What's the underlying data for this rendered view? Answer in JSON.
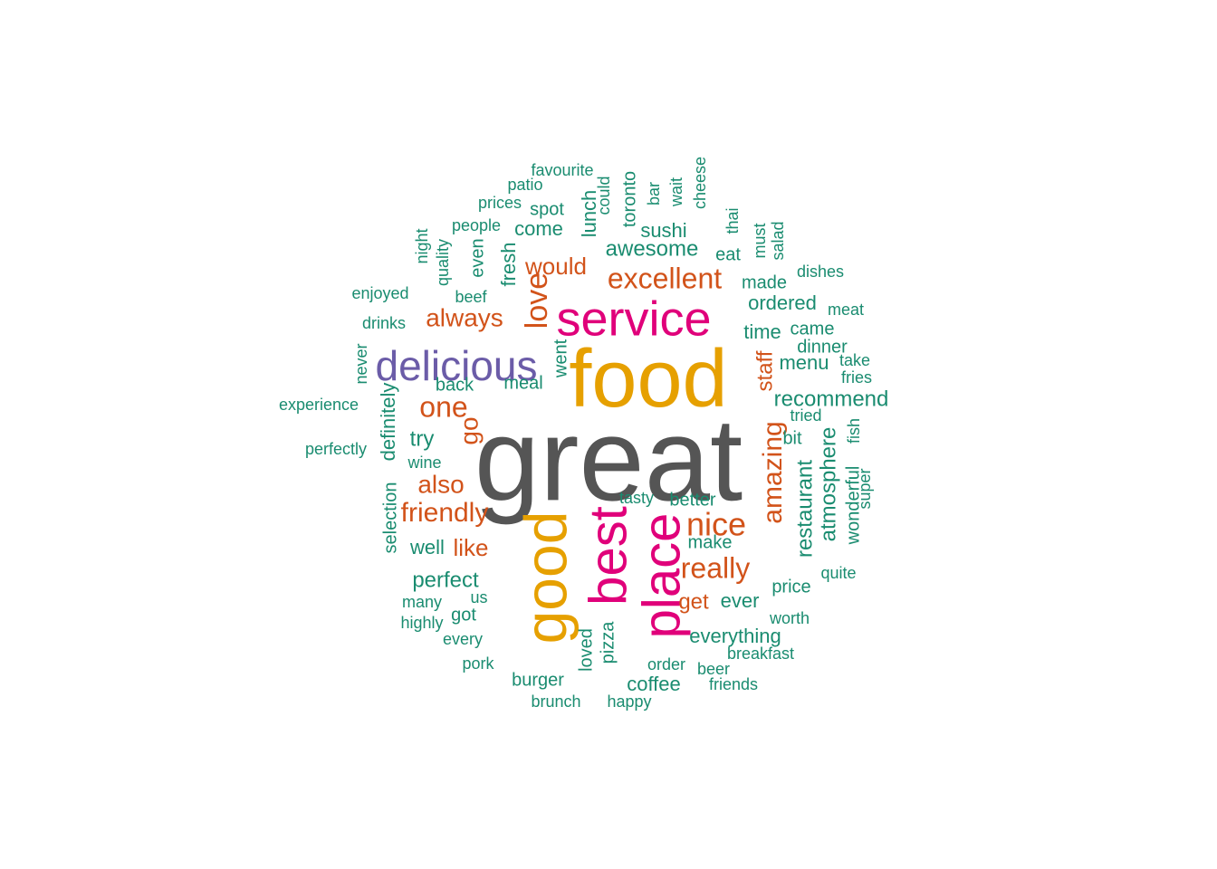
{
  "chart_data": {
    "type": "wordcloud",
    "title": "",
    "palette": {
      "gray": "#555555",
      "gold": "#E6A000",
      "magenta": "#E0007A",
      "purple": "#6B5CA8",
      "orange": "#D2531A",
      "green": "#1A8C70"
    },
    "words": [
      {
        "text": "great",
        "color": "#555555",
        "rank": 1
      },
      {
        "text": "food",
        "color": "#E6A000",
        "rank": 2
      },
      {
        "text": "good",
        "color": "#E6A000",
        "rank": 3
      },
      {
        "text": "place",
        "color": "#E0007A",
        "rank": 4
      },
      {
        "text": "best",
        "color": "#E0007A",
        "rank": 5
      },
      {
        "text": "service",
        "color": "#E0007A",
        "rank": 6
      },
      {
        "text": "delicious",
        "color": "#6B5CA8",
        "rank": 7
      },
      {
        "text": "nice",
        "color": "#D2531A",
        "rank": 8
      },
      {
        "text": "amazing",
        "color": "#D2531A",
        "rank": 9
      },
      {
        "text": "excellent",
        "color": "#D2531A",
        "rank": 10
      },
      {
        "text": "really",
        "color": "#D2531A",
        "rank": 11
      },
      {
        "text": "friendly",
        "color": "#D2531A",
        "rank": 12
      },
      {
        "text": "love",
        "color": "#D2531A",
        "rank": 13
      },
      {
        "text": "one",
        "color": "#D2531A",
        "rank": 14
      },
      {
        "text": "always",
        "color": "#D2531A",
        "rank": 15
      },
      {
        "text": "would",
        "color": "#D2531A",
        "rank": 16
      },
      {
        "text": "also",
        "color": "#D2531A",
        "rank": 17
      },
      {
        "text": "go",
        "color": "#D2531A",
        "rank": 18
      },
      {
        "text": "like",
        "color": "#D2531A",
        "rank": 19
      },
      {
        "text": "staff",
        "color": "#D2531A",
        "rank": 20
      },
      {
        "text": "get",
        "color": "#D2531A",
        "rank": 21
      },
      {
        "text": "restaurant",
        "color": "#1A8C70",
        "rank": 22
      },
      {
        "text": "atmosphere",
        "color": "#1A8C70",
        "rank": 23
      },
      {
        "text": "recommend",
        "color": "#1A8C70",
        "rank": 24
      },
      {
        "text": "awesome",
        "color": "#1A8C70",
        "rank": 25
      },
      {
        "text": "perfect",
        "color": "#1A8C70",
        "rank": 26
      },
      {
        "text": "everything",
        "color": "#1A8C70",
        "rank": 27
      },
      {
        "text": "ordered",
        "color": "#1A8C70",
        "rank": 28
      },
      {
        "text": "time",
        "color": "#1A8C70",
        "rank": 29
      },
      {
        "text": "menu",
        "color": "#1A8C70",
        "rank": 30
      },
      {
        "text": "try",
        "color": "#1A8C70",
        "rank": 31
      },
      {
        "text": "well",
        "color": "#1A8C70",
        "rank": 32
      },
      {
        "text": "ever",
        "color": "#1A8C70",
        "rank": 33
      },
      {
        "text": "sushi",
        "color": "#1A8C70",
        "rank": 34
      },
      {
        "text": "come",
        "color": "#1A8C70",
        "rank": 35
      },
      {
        "text": "lunch",
        "color": "#1A8C70",
        "rank": 36
      },
      {
        "text": "fresh",
        "color": "#1A8C70",
        "rank": 37
      },
      {
        "text": "coffee",
        "color": "#1A8C70",
        "rank": 38
      },
      {
        "text": "definitely",
        "color": "#1A8C70",
        "rank": 39
      },
      {
        "text": "wonderful",
        "color": "#1A8C70",
        "rank": 40
      },
      {
        "text": "came",
        "color": "#1A8C70",
        "rank": 41
      },
      {
        "text": "dinner",
        "color": "#1A8C70",
        "rank": 42
      },
      {
        "text": "made",
        "color": "#1A8C70",
        "rank": 43
      },
      {
        "text": "eat",
        "color": "#1A8C70",
        "rank": 44
      },
      {
        "text": "went",
        "color": "#1A8C70",
        "rank": 45
      },
      {
        "text": "loved",
        "color": "#1A8C70",
        "rank": 46
      },
      {
        "text": "pizza",
        "color": "#1A8C70",
        "rank": 47
      },
      {
        "text": "toronto",
        "color": "#1A8C70",
        "rank": 48
      },
      {
        "text": "even",
        "color": "#1A8C70",
        "rank": 49
      },
      {
        "text": "quality",
        "color": "#1A8C70",
        "rank": 50
      },
      {
        "text": "people",
        "color": "#1A8C70",
        "rank": 51
      },
      {
        "text": "spot",
        "color": "#1A8C70",
        "rank": 52
      },
      {
        "text": "back",
        "color": "#1A8C70",
        "rank": 53
      },
      {
        "text": "meal",
        "color": "#1A8C70",
        "rank": 54
      },
      {
        "text": "selection",
        "color": "#1A8C70",
        "rank": 55
      },
      {
        "text": "got",
        "color": "#1A8C70",
        "rank": 56
      },
      {
        "text": "burger",
        "color": "#1A8C70",
        "rank": 57
      },
      {
        "text": "make",
        "color": "#1A8C70",
        "rank": 58
      },
      {
        "text": "better",
        "color": "#1A8C70",
        "rank": 59
      },
      {
        "text": "price",
        "color": "#1A8C70",
        "rank": 60
      },
      {
        "text": "worth",
        "color": "#1A8C70",
        "rank": 61
      },
      {
        "text": "tried",
        "color": "#1A8C70",
        "rank": 62
      },
      {
        "text": "bit",
        "color": "#1A8C70",
        "rank": 63
      },
      {
        "text": "fish",
        "color": "#1A8C70",
        "rank": 64
      },
      {
        "text": "super",
        "color": "#1A8C70",
        "rank": 65
      },
      {
        "text": "quite",
        "color": "#1A8C70",
        "rank": 66
      },
      {
        "text": "take",
        "color": "#1A8C70",
        "rank": 67
      },
      {
        "text": "fries",
        "color": "#1A8C70",
        "rank": 68
      },
      {
        "text": "meat",
        "color": "#1A8C70",
        "rank": 69
      },
      {
        "text": "dishes",
        "color": "#1A8C70",
        "rank": 70
      },
      {
        "text": "salad",
        "color": "#1A8C70",
        "rank": 71
      },
      {
        "text": "must",
        "color": "#1A8C70",
        "rank": 72
      },
      {
        "text": "thai",
        "color": "#1A8C70",
        "rank": 73
      },
      {
        "text": "cheese",
        "color": "#1A8C70",
        "rank": 74
      },
      {
        "text": "wait",
        "color": "#1A8C70",
        "rank": 75
      },
      {
        "text": "bar",
        "color": "#1A8C70",
        "rank": 76
      },
      {
        "text": "could",
        "color": "#1A8C70",
        "rank": 77
      },
      {
        "text": "favourite",
        "color": "#1A8C70",
        "rank": 78
      },
      {
        "text": "patio",
        "color": "#1A8C70",
        "rank": 79
      },
      {
        "text": "prices",
        "color": "#1A8C70",
        "rank": 80
      },
      {
        "text": "night",
        "color": "#1A8C70",
        "rank": 81
      },
      {
        "text": "enjoyed",
        "color": "#1A8C70",
        "rank": 82
      },
      {
        "text": "beef",
        "color": "#1A8C70",
        "rank": 83
      },
      {
        "text": "drinks",
        "color": "#1A8C70",
        "rank": 84
      },
      {
        "text": "never",
        "color": "#1A8C70",
        "rank": 85
      },
      {
        "text": "experience",
        "color": "#1A8C70",
        "rank": 86
      },
      {
        "text": "perfectly",
        "color": "#1A8C70",
        "rank": 87
      },
      {
        "text": "wine",
        "color": "#1A8C70",
        "rank": 88
      },
      {
        "text": "many",
        "color": "#1A8C70",
        "rank": 89
      },
      {
        "text": "us",
        "color": "#1A8C70",
        "rank": 90
      },
      {
        "text": "highly",
        "color": "#1A8C70",
        "rank": 91
      },
      {
        "text": "every",
        "color": "#1A8C70",
        "rank": 92
      },
      {
        "text": "pork",
        "color": "#1A8C70",
        "rank": 93
      },
      {
        "text": "brunch",
        "color": "#1A8C70",
        "rank": 94
      },
      {
        "text": "happy",
        "color": "#1A8C70",
        "rank": 95
      },
      {
        "text": "order",
        "color": "#1A8C70",
        "rank": 96
      },
      {
        "text": "beer",
        "color": "#1A8C70",
        "rank": 97
      },
      {
        "text": "friends",
        "color": "#1A8C70",
        "rank": 98
      },
      {
        "text": "breakfast",
        "color": "#1A8C70",
        "rank": 99
      },
      {
        "text": "tasty",
        "color": "#1A8C70",
        "rank": 100
      }
    ]
  }
}
